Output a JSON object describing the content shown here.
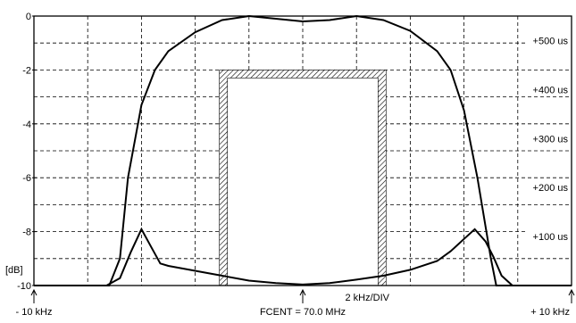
{
  "chart_data": {
    "type": "line",
    "xlim": [
      -10,
      10
    ],
    "x_unit": "kHz",
    "y_left_lim": [
      -10,
      0
    ],
    "y_right_lim": [
      0,
      550
    ],
    "y_left_ticks": [
      "0",
      "-2",
      "-4",
      "-6",
      "-8",
      "-10"
    ],
    "y_left_unit": "[dB]",
    "y_right_ticks": [
      "+500 us",
      "+400 us",
      "+300 us",
      "+200 us",
      "+100 us"
    ],
    "x_labels": {
      "left": "- 10 kHz",
      "center": "FCENT = 70.0 MHz",
      "right": "+ 10 kHz",
      "division": "2 kHz/DIV"
    },
    "grid": true,
    "series": [
      {
        "axis": "left",
        "x": [
          -10,
          -7.2,
          -6.8,
          -6.5,
          -6.0,
          -5.5,
          -5.0,
          -4.0,
          -3.0,
          -2.0,
          -1.0,
          0.0,
          1.0,
          2.0,
          3.0,
          4.0,
          5.0,
          5.5,
          6.0,
          6.5,
          7.0,
          7.2,
          10
        ],
        "y": [
          -10,
          -10,
          -9.0,
          -6.0,
          -3.3,
          -2.0,
          -1.3,
          -0.6,
          -0.15,
          0.0,
          -0.1,
          -0.2,
          -0.15,
          0.0,
          -0.15,
          -0.55,
          -1.3,
          -2.0,
          -3.5,
          -6.0,
          -9.0,
          -10,
          -10
        ]
      },
      {
        "axis": "right",
        "x": [
          -7.3,
          -6.8,
          -6.4,
          -6.0,
          -5.6,
          -5.3,
          -5.0,
          -4.0,
          -3.0,
          -2.0,
          -1.0,
          0.0,
          1.0,
          2.0,
          3.0,
          4.0,
          5.0,
          5.5,
          6.0,
          6.4,
          6.8,
          7.1,
          7.4,
          7.8
        ],
        "y": [
          0,
          15,
          68,
          115,
          75,
          45,
          40,
          30,
          20,
          10,
          5,
          2,
          5,
          12,
          20,
          32,
          50,
          70,
          95,
          115,
          90,
          58,
          20,
          0
        ]
      }
    ],
    "mask_region": {
      "x": [
        -3.1,
        3.1
      ],
      "y_top_db": -2
    }
  }
}
